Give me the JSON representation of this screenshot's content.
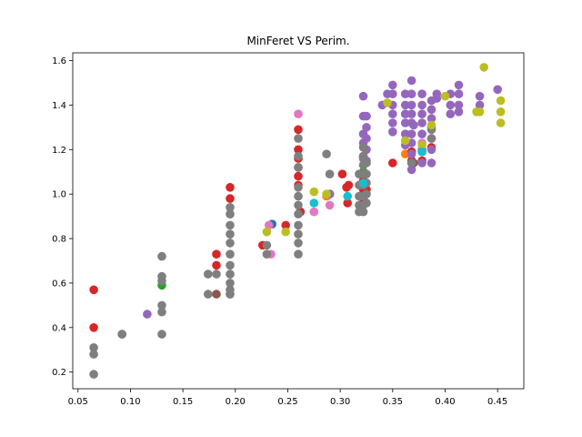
{
  "chart_data": {
    "type": "scatter",
    "title": "MinFeret VS Perim.",
    "xlabel": "",
    "ylabel": "",
    "xlim": [
      0.045,
      0.475
    ],
    "ylim": [
      0.125,
      1.635
    ],
    "xticks": [
      0.05,
      0.1,
      0.15,
      0.2,
      0.25,
      0.3,
      0.35,
      0.4,
      0.45
    ],
    "xtick_labels": [
      "0.05",
      "0.10",
      "0.15",
      "0.20",
      "0.25",
      "0.30",
      "0.35",
      "0.40",
      "0.45"
    ],
    "yticks": [
      0.2,
      0.4,
      0.6,
      0.8,
      1.0,
      1.2,
      1.4,
      1.6
    ],
    "ytick_labels": [
      "0.2",
      "0.4",
      "0.6",
      "0.8",
      "1.0",
      "1.2",
      "1.4",
      "1.6"
    ],
    "grid": false,
    "legend": "none",
    "series": [
      {
        "color": "#1f77b4",
        "points": [
          [
            0.235,
            0.865
          ],
          [
            0.29,
            1.0
          ],
          [
            0.262,
            0.92
          ]
        ]
      },
      {
        "color": "#ff7f0e",
        "points": [
          [
            0.287,
            0.99
          ],
          [
            0.362,
            1.18
          ],
          [
            0.322,
            0.96
          ]
        ]
      },
      {
        "color": "#2ca02c",
        "points": [
          [
            0.13,
            0.59
          ],
          [
            0.322,
            1.1
          ]
        ]
      },
      {
        "color": "#d62728",
        "points": [
          [
            0.065,
            0.57
          ],
          [
            0.065,
            0.4
          ],
          [
            0.182,
            0.73
          ],
          [
            0.182,
            0.68
          ],
          [
            0.195,
            1.03
          ],
          [
            0.195,
            0.98
          ],
          [
            0.226,
            0.77
          ],
          [
            0.248,
            0.86
          ],
          [
            0.26,
            1.29
          ],
          [
            0.26,
            1.2
          ],
          [
            0.26,
            1.16
          ],
          [
            0.26,
            1.12
          ],
          [
            0.26,
            1.08
          ],
          [
            0.26,
            1.04
          ],
          [
            0.262,
            0.92
          ],
          [
            0.302,
            1.09
          ],
          [
            0.306,
            1.03
          ],
          [
            0.308,
            1.04
          ],
          [
            0.307,
            0.96
          ],
          [
            0.322,
            1.06
          ],
          [
            0.322,
            1.02
          ],
          [
            0.322,
            0.98
          ],
          [
            0.325,
            1.02
          ],
          [
            0.35,
            1.14
          ],
          [
            0.368,
            1.19
          ],
          [
            0.378,
            1.15
          ],
          [
            0.378,
            1.19
          ],
          [
            0.368,
            1.15
          ],
          [
            0.387,
            1.21
          ]
        ]
      },
      {
        "color": "#9467bd",
        "points": [
          [
            0.116,
            0.46
          ],
          [
            0.29,
            1.0
          ],
          [
            0.322,
            1.44
          ],
          [
            0.322,
            1.35
          ],
          [
            0.322,
            1.27
          ],
          [
            0.322,
            1.23
          ],
          [
            0.322,
            1.16
          ],
          [
            0.325,
            1.35
          ],
          [
            0.325,
            1.3
          ],
          [
            0.325,
            1.25
          ],
          [
            0.325,
            1.2
          ],
          [
            0.325,
            1.15
          ],
          [
            0.34,
            1.4
          ],
          [
            0.345,
            1.45
          ],
          [
            0.35,
            1.49
          ],
          [
            0.35,
            1.45
          ],
          [
            0.35,
            1.4
          ],
          [
            0.35,
            1.36
          ],
          [
            0.35,
            1.32
          ],
          [
            0.35,
            1.28
          ],
          [
            0.362,
            1.45
          ],
          [
            0.362,
            1.4
          ],
          [
            0.362,
            1.36
          ],
          [
            0.362,
            1.32
          ],
          [
            0.362,
            1.27
          ],
          [
            0.362,
            1.22
          ],
          [
            0.368,
            1.51
          ],
          [
            0.368,
            1.45
          ],
          [
            0.368,
            1.4
          ],
          [
            0.368,
            1.36
          ],
          [
            0.368,
            1.32
          ],
          [
            0.368,
            1.27
          ],
          [
            0.368,
            1.23
          ],
          [
            0.368,
            1.18
          ],
          [
            0.368,
            1.14
          ],
          [
            0.368,
            1.11
          ],
          [
            0.37,
            1.31
          ],
          [
            0.378,
            1.45
          ],
          [
            0.378,
            1.4
          ],
          [
            0.378,
            1.36
          ],
          [
            0.378,
            1.32
          ],
          [
            0.378,
            1.27
          ],
          [
            0.378,
            1.2
          ],
          [
            0.378,
            1.14
          ],
          [
            0.387,
            1.42
          ],
          [
            0.387,
            1.38
          ],
          [
            0.387,
            1.34
          ],
          [
            0.387,
            1.3
          ],
          [
            0.387,
            1.25
          ],
          [
            0.387,
            1.2
          ],
          [
            0.387,
            1.14
          ],
          [
            0.392,
            1.45
          ],
          [
            0.392,
            1.43
          ],
          [
            0.405,
            1.45
          ],
          [
            0.405,
            1.4
          ],
          [
            0.405,
            1.36
          ],
          [
            0.413,
            1.49
          ],
          [
            0.413,
            1.45
          ],
          [
            0.413,
            1.4
          ],
          [
            0.413,
            1.37
          ],
          [
            0.433,
            1.44
          ],
          [
            0.433,
            1.4
          ],
          [
            0.45,
            1.47
          ]
        ]
      },
      {
        "color": "#8c564b",
        "points": [
          [
            0.092,
            0.37
          ],
          [
            0.182,
            0.55
          ],
          [
            0.37,
            1.14
          ],
          [
            0.322,
            1.17
          ]
        ]
      },
      {
        "color": "#e377c2",
        "points": [
          [
            0.195,
            0.55
          ],
          [
            0.232,
            0.86
          ],
          [
            0.234,
            0.73
          ],
          [
            0.26,
            1.36
          ],
          [
            0.275,
            0.92
          ],
          [
            0.29,
            0.95
          ],
          [
            0.378,
            1.23
          ]
        ]
      },
      {
        "color": "#7f7f7f",
        "points": [
          [
            0.065,
            0.31
          ],
          [
            0.065,
            0.28
          ],
          [
            0.065,
            0.19
          ],
          [
            0.092,
            0.37
          ],
          [
            0.13,
            0.72
          ],
          [
            0.13,
            0.63
          ],
          [
            0.13,
            0.61
          ],
          [
            0.13,
            0.5
          ],
          [
            0.13,
            0.47
          ],
          [
            0.13,
            0.37
          ],
          [
            0.174,
            0.64
          ],
          [
            0.174,
            0.55
          ],
          [
            0.182,
            0.64
          ],
          [
            0.195,
            0.94
          ],
          [
            0.195,
            0.91
          ],
          [
            0.195,
            0.86
          ],
          [
            0.195,
            0.82
          ],
          [
            0.195,
            0.78
          ],
          [
            0.195,
            0.73
          ],
          [
            0.195,
            0.68
          ],
          [
            0.195,
            0.64
          ],
          [
            0.195,
            0.6
          ],
          [
            0.195,
            0.57
          ],
          [
            0.195,
            0.55
          ],
          [
            0.23,
            0.77
          ],
          [
            0.23,
            0.73
          ],
          [
            0.26,
            1.25
          ],
          [
            0.26,
            1.17
          ],
          [
            0.26,
            1.12
          ],
          [
            0.26,
            1.03
          ],
          [
            0.26,
            0.99
          ],
          [
            0.26,
            0.95
          ],
          [
            0.26,
            0.91
          ],
          [
            0.26,
            0.86
          ],
          [
            0.26,
            0.82
          ],
          [
            0.26,
            0.78
          ],
          [
            0.26,
            0.73
          ],
          [
            0.287,
            1.18
          ],
          [
            0.29,
            1.09
          ],
          [
            0.318,
            1.09
          ],
          [
            0.318,
            1.04
          ],
          [
            0.318,
            0.99
          ],
          [
            0.318,
            0.95
          ],
          [
            0.318,
            0.92
          ],
          [
            0.322,
            1.21
          ],
          [
            0.322,
            1.17
          ],
          [
            0.322,
            1.13
          ],
          [
            0.322,
            1.09
          ],
          [
            0.322,
            1.04
          ],
          [
            0.322,
            0.99
          ],
          [
            0.322,
            0.95
          ],
          [
            0.322,
            0.92
          ],
          [
            0.325,
            1.14
          ],
          [
            0.325,
            1.09
          ],
          [
            0.325,
            1.05
          ],
          [
            0.325,
            1.0
          ],
          [
            0.325,
            0.96
          ],
          [
            0.368,
            1.14
          ],
          [
            0.387,
            1.29
          ],
          [
            0.387,
            1.25
          ]
        ]
      },
      {
        "color": "#bcbd22",
        "points": [
          [
            0.23,
            0.83
          ],
          [
            0.248,
            0.83
          ],
          [
            0.275,
            1.01
          ],
          [
            0.287,
            1.0
          ],
          [
            0.362,
            1.24
          ],
          [
            0.378,
            1.22
          ],
          [
            0.387,
            1.31
          ],
          [
            0.43,
            1.37
          ],
          [
            0.433,
            1.37
          ],
          [
            0.437,
            1.57
          ],
          [
            0.453,
            1.42
          ],
          [
            0.453,
            1.37
          ],
          [
            0.453,
            1.32
          ],
          [
            0.4,
            1.44
          ],
          [
            0.345,
            1.41
          ]
        ]
      },
      {
        "color": "#17becf",
        "points": [
          [
            0.275,
            0.96
          ],
          [
            0.307,
            0.99
          ],
          [
            0.322,
            1.05
          ],
          [
            0.378,
            1.19
          ]
        ]
      }
    ]
  }
}
